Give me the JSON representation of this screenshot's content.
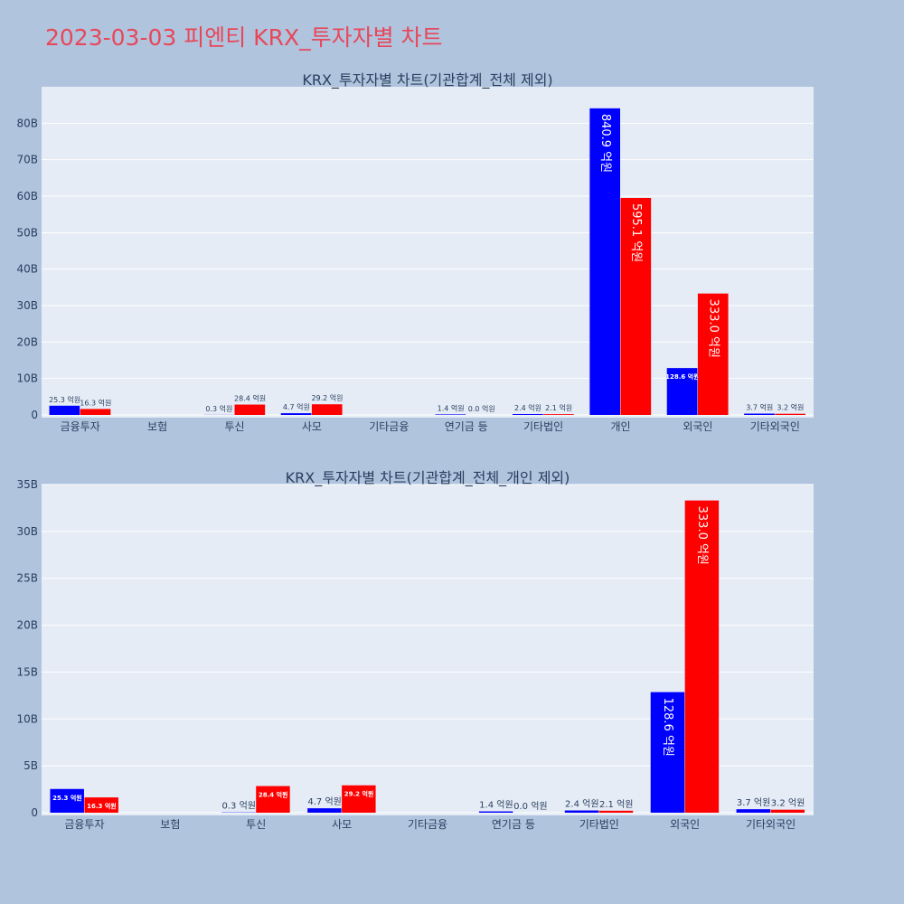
{
  "page": {
    "title": "2023-03-03 피엔티 KRX_투자자별 차트",
    "title_color": "#e8475a",
    "background": "#b0c4de"
  },
  "colors": {
    "buy": "#0000ff",
    "sell": "#ff0000",
    "plot_bg": "#e5ecf6"
  },
  "chart_data": [
    {
      "type": "bar",
      "title": "KRX_투자자별 차트(기관합계_전체 제외)",
      "categories": [
        "금융투자",
        "보험",
        "투신",
        "사모",
        "기타금융",
        "연기금 등",
        "기타법인",
        "개인",
        "외국인",
        "기타외국인"
      ],
      "series": [
        {
          "color": "#0000ff",
          "values": [
            2530000000,
            0,
            30000000,
            470000000,
            0,
            140000000,
            240000000,
            84090000000,
            12860000000,
            370000000
          ],
          "labels": [
            "25.3 억원",
            "",
            "0.3 억원",
            "4.7 억원",
            "",
            "1.4 억원",
            "2.4 억원",
            "840.9 억원",
            "128.6 억원",
            "3.7 억원"
          ]
        },
        {
          "color": "#ff0000",
          "values": [
            1630000000,
            0,
            2840000000,
            2920000000,
            0,
            0,
            210000000,
            59510000000,
            33300000000,
            320000000
          ],
          "labels": [
            "16.3 억원",
            "",
            "28.4 억원",
            "29.2 억원",
            "",
            "0.0 억원",
            "2.1 억원",
            "595.1 억원",
            "333.0 억원",
            "3.2 억원"
          ]
        }
      ],
      "ylim": [
        0,
        90000000000
      ],
      "yticks": [
        0,
        10000000000,
        20000000000,
        30000000000,
        40000000000,
        50000000000,
        60000000000,
        70000000000,
        80000000000
      ],
      "ytick_labels": [
        "0",
        "10B",
        "20B",
        "30B",
        "40B",
        "50B",
        "60B",
        "70B",
        "80B"
      ],
      "grid": true
    },
    {
      "type": "bar",
      "title": "KRX_투자자별 차트(기관합계_전체_개인 제외)",
      "categories": [
        "금융투자",
        "보험",
        "투신",
        "사모",
        "기타금융",
        "연기금 등",
        "기타법인",
        "외국인",
        "기타외국인"
      ],
      "series": [
        {
          "color": "#0000ff",
          "values": [
            2530000000,
            0,
            30000000,
            470000000,
            0,
            140000000,
            240000000,
            12860000000,
            370000000
          ],
          "labels": [
            "25.3 억원",
            "",
            "0.3 억원",
            "4.7 억원",
            "",
            "1.4 억원",
            "2.4 억원",
            "128.6 억원",
            "3.7 억원"
          ]
        },
        {
          "color": "#ff0000",
          "values": [
            1630000000,
            0,
            2840000000,
            2920000000,
            0,
            0,
            210000000,
            33300000000,
            320000000
          ],
          "labels": [
            "16.3 억원",
            "",
            "28.4 억원",
            "29.2 억원",
            "",
            "0.0 억원",
            "2.1 억원",
            "333.0 억원",
            "3.2 억원"
          ]
        }
      ],
      "ylim": [
        0,
        35000000000
      ],
      "yticks": [
        0,
        5000000000,
        10000000000,
        15000000000,
        20000000000,
        25000000000,
        30000000000,
        35000000000
      ],
      "ytick_labels": [
        "0",
        "5B",
        "10B",
        "15B",
        "20B",
        "25B",
        "30B",
        "35B"
      ],
      "grid": true
    }
  ]
}
